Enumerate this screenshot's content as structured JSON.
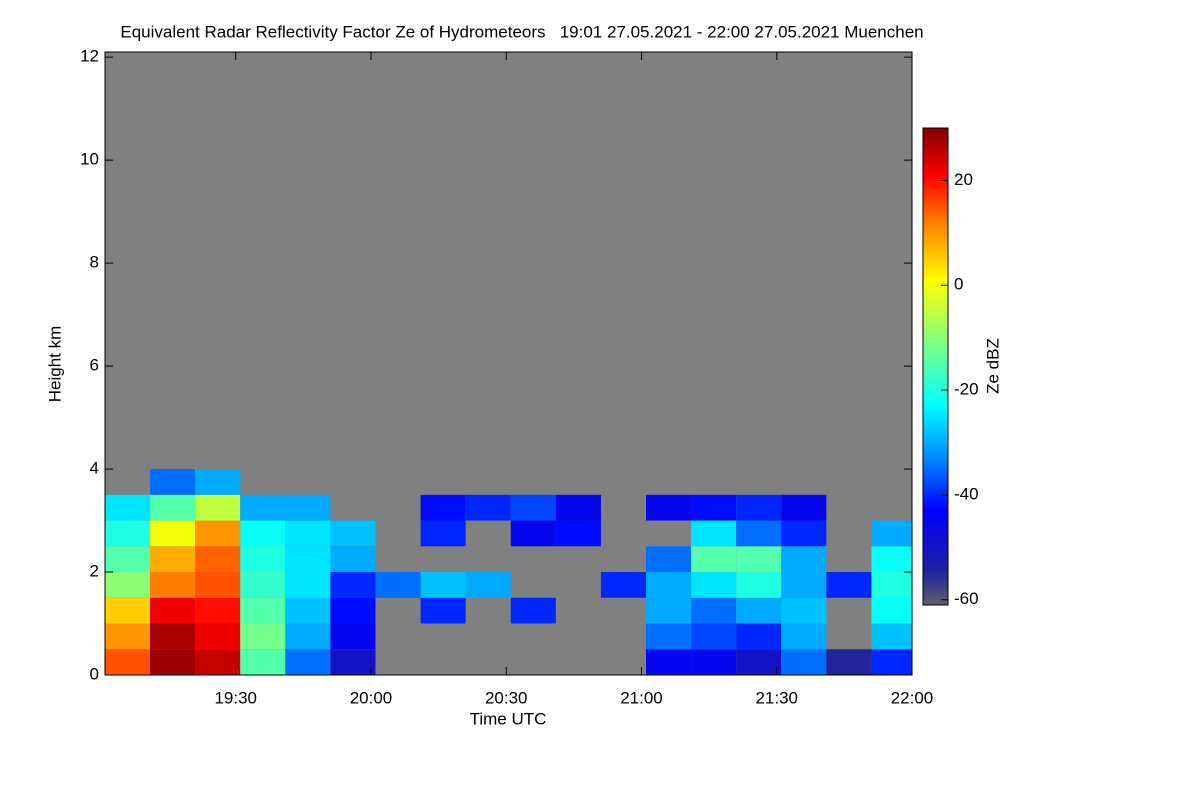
{
  "chart_data": {
    "type": "heatmap",
    "title": "Equivalent Radar Reflectivity Factor Ze of Hydrometeors   19:01 27.05.2021 - 22:00 27.05.2021 Muenchen",
    "xlabel": "Time UTC",
    "ylabel": "Height km",
    "colorbar_label": "Ze dBZ",
    "x": [
      1141,
      1151,
      1161,
      1171,
      1181,
      1191,
      1201,
      1211,
      1221,
      1231,
      1241,
      1251,
      1261,
      1271,
      1281,
      1291,
      1301,
      1311
    ],
    "y": [
      0,
      0.5,
      1,
      1.5,
      2,
      2.5,
      3,
      3.5
    ],
    "z": [
      [
        15,
        10,
        5,
        -10,
        -15,
        -20,
        -25,
        null
      ],
      [
        28,
        27,
        22,
        12,
        8,
        0,
        -15,
        -35
      ],
      [
        25,
        22,
        20,
        15,
        14,
        10,
        -5,
        -30
      ],
      [
        -15,
        -12,
        -15,
        -18,
        -20,
        -22,
        -30,
        null
      ],
      [
        -35,
        -30,
        -28,
        -25,
        -25,
        -25,
        -30,
        null
      ],
      [
        -50,
        -45,
        -42,
        -40,
        -30,
        -28,
        null,
        null
      ],
      [
        null,
        null,
        null,
        -35,
        null,
        null,
        null,
        null
      ],
      [
        null,
        null,
        -40,
        -28,
        null,
        -40,
        -42,
        null
      ],
      [
        null,
        null,
        null,
        -30,
        null,
        null,
        -40,
        null
      ],
      [
        null,
        null,
        -40,
        null,
        null,
        -45,
        -38,
        null
      ],
      [
        null,
        null,
        null,
        null,
        null,
        -42,
        -45,
        null
      ],
      [
        null,
        null,
        null,
        -40,
        null,
        null,
        null,
        null
      ],
      [
        -45,
        -35,
        -30,
        -30,
        -35,
        null,
        -45,
        null
      ],
      [
        -45,
        -38,
        -35,
        -25,
        -15,
        -25,
        -42,
        null
      ],
      [
        -50,
        -40,
        -30,
        -20,
        -15,
        -35,
        -40,
        null
      ],
      [
        -35,
        -30,
        -28,
        -30,
        -30,
        -40,
        -45,
        null
      ],
      [
        -55,
        null,
        null,
        -40,
        null,
        null,
        null,
        null
      ],
      [
        -40,
        -28,
        -22,
        -20,
        -22,
        -30,
        null,
        null
      ]
    ],
    "xlim": [
      1141,
      1320
    ],
    "ylim": [
      0,
      12.1
    ],
    "zlim": [
      -61,
      30
    ],
    "xticks": [
      {
        "value": 1170,
        "label": "19:30"
      },
      {
        "value": 1200,
        "label": "20:00"
      },
      {
        "value": 1230,
        "label": "20:30"
      },
      {
        "value": 1260,
        "label": "21:00"
      },
      {
        "value": 1290,
        "label": "21:30"
      },
      {
        "value": 1320,
        "label": "22:00"
      }
    ],
    "yticks": [
      0,
      2,
      4,
      6,
      8,
      10,
      12
    ],
    "zticks": [
      20,
      0,
      -20,
      -40,
      -60
    ],
    "background": "#808080"
  }
}
